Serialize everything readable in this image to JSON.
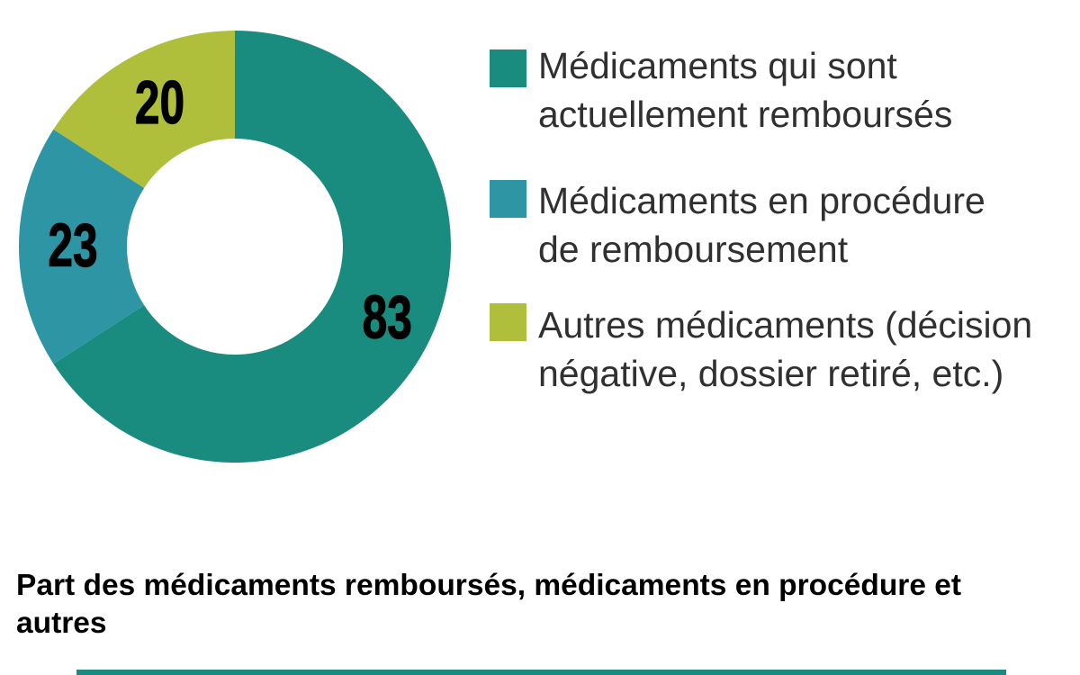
{
  "chart_data": {
    "type": "pie",
    "subtype": "donut",
    "categories": [
      "Médicaments qui sont actuellement remboursés",
      "Médicaments en procédure de remboursement",
      "Autres médicaments (décision négative, dossier retiré, etc.)"
    ],
    "values": [
      83,
      23,
      20
    ],
    "colors": [
      "#1A8B7F",
      "#2E95A4",
      "#AFBE3B"
    ],
    "slice_names": [
      "rembourses",
      "en-procedure",
      "autres"
    ],
    "title": "Part des médicaments remboursés, médicaments en procédure et autres",
    "legend_position": "right",
    "data_labels": [
      "83",
      "23",
      "20"
    ]
  },
  "legend": {
    "items": [
      {
        "line1": "Médicaments qui sont",
        "line2": "actuellement remboursés",
        "color": "#1A8B7F"
      },
      {
        "line1": "Médicaments en procédure",
        "line2": "de remboursement",
        "color": "#2E95A4"
      },
      {
        "line1": "Autres médicaments (décision",
        "line2": "négative, dossier retiré, etc.)",
        "color": "#AFBE3B"
      }
    ]
  },
  "caption": {
    "line1": "Part des médicaments remboursés, médicaments en procédure et",
    "line2": "autres"
  },
  "footer": {
    "bar_color": "#1A8B7F"
  }
}
